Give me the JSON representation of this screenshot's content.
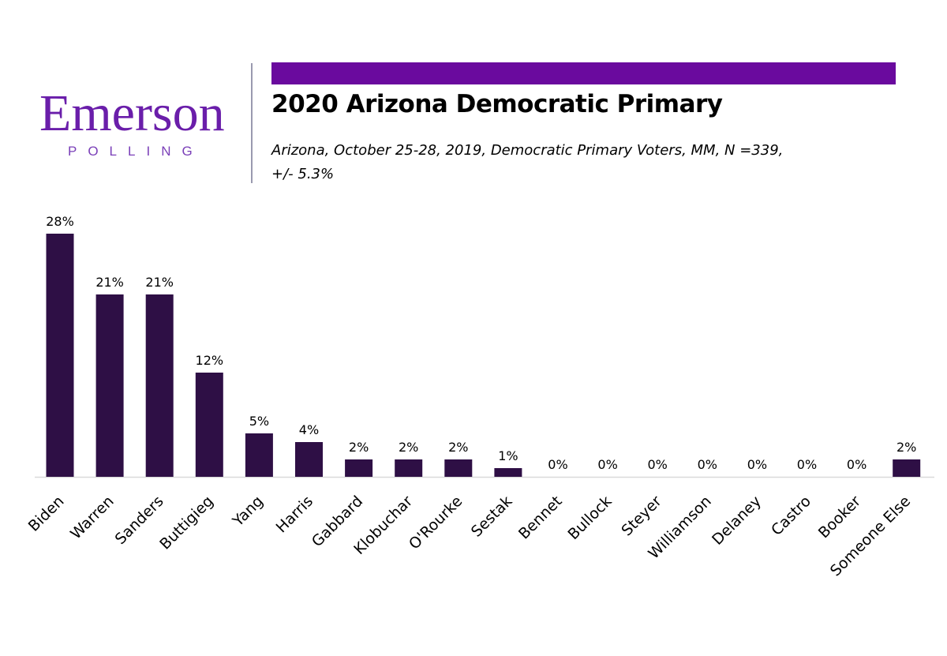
{
  "header": {
    "logo_word": "Emerson",
    "logo_sub": "POLLING",
    "title": "2020 Arizona Democratic Primary",
    "subtitle_line1": "Arizona, October 25-28, 2019, Democratic Primary Voters, MM, N =339,",
    "subtitle_line2": "+/- 5.3%"
  },
  "colors": {
    "brand_purple": "#6a0a9e",
    "bar": "#2e0f45",
    "axis": "#d9d9d9"
  },
  "chart_data": {
    "type": "bar",
    "title": "2020 Arizona Democratic Primary",
    "categories": [
      "Biden",
      "Warren",
      "Sanders",
      "Buttigieg",
      "Yang",
      "Harris",
      "Gabbard",
      "Klobuchar",
      "O'Rourke",
      "Sestak",
      "Bennet",
      "Bullock",
      "Steyer",
      "Williamson",
      "Delaney",
      "Castro",
      "Booker",
      "Someone Else"
    ],
    "values": [
      28,
      21,
      21,
      12,
      5,
      4,
      2,
      2,
      2,
      1,
      0,
      0,
      0,
      0,
      0,
      0,
      0,
      2
    ],
    "value_labels": [
      "28%",
      "21%",
      "21%",
      "12%",
      "5%",
      "4%",
      "2%",
      "2%",
      "2%",
      "1%",
      "0%",
      "0%",
      "0%",
      "0%",
      "0%",
      "0%",
      "0%",
      "2%"
    ],
    "xlabel": "",
    "ylabel": "",
    "ylim": [
      0,
      28
    ],
    "grid": false,
    "legend": "none"
  }
}
